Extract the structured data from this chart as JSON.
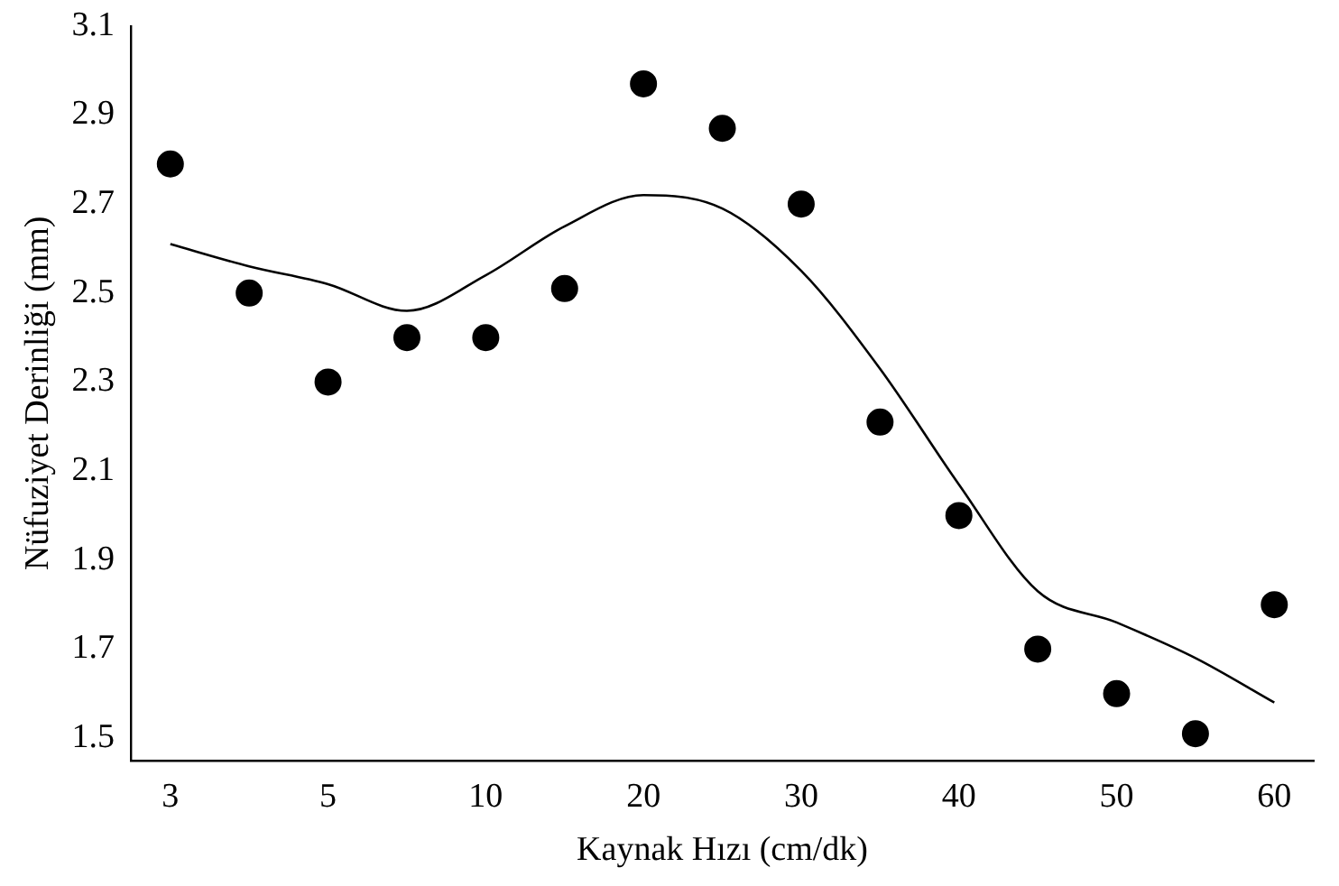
{
  "chart_data": {
    "type": "scatter",
    "xlabel": "Kaynak Hızı (cm/dk)",
    "ylabel": "Nüfuziyet Derinliği (mm)",
    "categories": [
      "3",
      null,
      "5",
      null,
      "10",
      null,
      "20",
      null,
      "30",
      null,
      "40",
      null,
      "50",
      null,
      "60"
    ],
    "series": [
      {
        "type": "scatter",
        "color": "#000000",
        "marker": "circle",
        "values": [
          2.79,
          2.5,
          2.3,
          2.4,
          2.4,
          2.51,
          2.97,
          2.87,
          2.7,
          2.21,
          2.0,
          1.7,
          1.6,
          1.51,
          1.8
        ]
      },
      {
        "type": "line",
        "color": "#000000",
        "marker": "none",
        "line_style": "solid",
        "values": [
          2.61,
          2.56,
          2.52,
          2.46,
          2.54,
          2.65,
          2.72,
          2.69,
          2.55,
          2.33,
          2.07,
          1.83,
          1.76,
          1.68,
          1.58
        ]
      }
    ],
    "ylim": [
      1.45,
      3.1
    ],
    "yticks": [
      1.5,
      1.7,
      1.9,
      2.1,
      2.3,
      2.5,
      2.7,
      2.9,
      3.1
    ],
    "grid": false,
    "legend": false
  }
}
